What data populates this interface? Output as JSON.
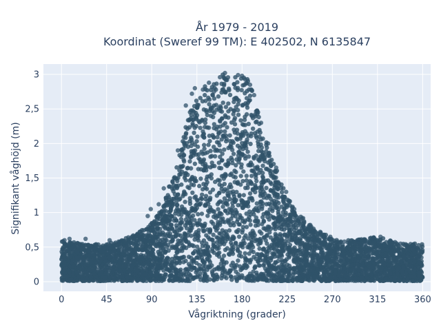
{
  "chart_data": {
    "type": "scatter",
    "title_line1": "År 1979 - 2019",
    "title_line2": "Koordinat (Sweref 99 TM): E 402502, N 6135847",
    "xlabel": "Vågriktning (grader)",
    "ylabel": "Signifikant våghöjd (m)",
    "xlim": [
      -18,
      368
    ],
    "ylim": [
      -0.14,
      3.15
    ],
    "xticks": [
      0,
      45,
      90,
      135,
      180,
      225,
      270,
      315,
      360
    ],
    "xtick_labels": [
      "0",
      "45",
      "90",
      "135",
      "180",
      "225",
      "270",
      "315",
      "360"
    ],
    "yticks": [
      0,
      0.5,
      1,
      1.5,
      2,
      2.5,
      3
    ],
    "ytick_labels": [
      "0",
      "0,5",
      "1",
      "1,5",
      "2",
      "2,5",
      "3"
    ],
    "grid": true,
    "colors": {
      "marker": "#2f5269",
      "plot_background": "#e5ecf6",
      "grid": "#ffffff",
      "text": "#2a3f5f"
    },
    "envelope": {
      "direction": [
        0,
        20,
        45,
        60,
        75,
        90,
        100,
        110,
        120,
        128,
        135,
        145,
        155,
        162,
        170,
        178,
        185,
        192,
        200,
        210,
        220,
        230,
        245,
        260,
        275,
        290,
        315,
        340,
        360
      ],
      "max_height": [
        0.6,
        0.55,
        0.55,
        0.6,
        0.7,
        0.85,
        1.05,
        1.5,
        2.0,
        2.5,
        2.75,
        2.85,
        2.95,
        3.02,
        2.95,
        2.98,
        2.95,
        2.7,
        2.2,
        1.8,
        1.4,
        1.1,
        0.85,
        0.7,
        0.6,
        0.6,
        0.65,
        0.55,
        0.55
      ],
      "min_height": 0.0
    },
    "outliers": [
      [
        3,
        0.6
      ],
      [
        8,
        0.62
      ],
      [
        24,
        0.62
      ],
      [
        48,
        0.6
      ],
      [
        57,
        0.58
      ],
      [
        78,
        0.72
      ],
      [
        86,
        0.95
      ],
      [
        89,
        1.05
      ],
      [
        97,
        1.12
      ],
      [
        102,
        1.35
      ],
      [
        116,
        1.9
      ],
      [
        124,
        2.55
      ],
      [
        130,
        2.72
      ],
      [
        133,
        2.8
      ],
      [
        141,
        2.78
      ],
      [
        147,
        2.88
      ],
      [
        152,
        2.75
      ],
      [
        158,
        2.96
      ],
      [
        163,
        3.02
      ],
      [
        165,
        2.92
      ],
      [
        172,
        2.86
      ],
      [
        176,
        2.99
      ],
      [
        180,
        2.98
      ],
      [
        183,
        2.93
      ],
      [
        188,
        2.85
      ],
      [
        192,
        2.7
      ],
      [
        199,
        2.3
      ],
      [
        206,
        2.0
      ],
      [
        214,
        1.65
      ],
      [
        224,
        1.3
      ],
      [
        232,
        1.05
      ],
      [
        236,
        0.88
      ],
      [
        242,
        0.78
      ],
      [
        248,
        0.82
      ],
      [
        258,
        0.72
      ],
      [
        268,
        0.65
      ],
      [
        282,
        0.58
      ],
      [
        295,
        0.6
      ],
      [
        302,
        0.53
      ],
      [
        310,
        0.62
      ],
      [
        318,
        0.65
      ],
      [
        328,
        0.5
      ],
      [
        338,
        0.55
      ],
      [
        345,
        0.5
      ],
      [
        352,
        0.5
      ],
      [
        358,
        0.48
      ]
    ]
  }
}
